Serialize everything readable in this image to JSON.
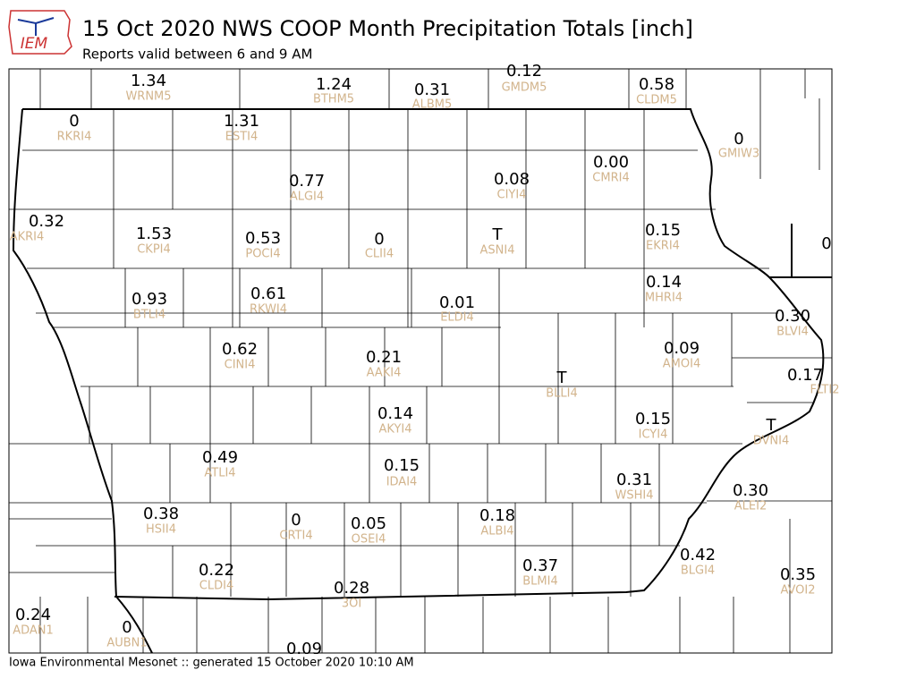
{
  "header": {
    "logo": "IEM",
    "title": "15 Oct 2020 NWS COOP Month Precipitation Totals [inch]",
    "subtitle": "Reports valid between 6 and 9 AM"
  },
  "stations": [
    {
      "value": "1.34",
      "id": "WRNM5"
    },
    {
      "value": "1.24",
      "id": "BTHM5"
    },
    {
      "value": "0.31",
      "id": "ALBM5"
    },
    {
      "value": "0.12",
      "id": "GMDM5"
    },
    {
      "value": "0.58",
      "id": "CLDM5"
    },
    {
      "value": "0",
      "id": "RKRI4"
    },
    {
      "value": "1.31",
      "id": "ESTI4"
    },
    {
      "value": "0",
      "id": "GMIW3"
    },
    {
      "value": "0.00",
      "id": "CMRI4"
    },
    {
      "value": "0.08",
      "id": "CIYI4"
    },
    {
      "value": "0.77",
      "id": "ALGI4"
    },
    {
      "value": "0.32",
      "id": "AKRI4"
    },
    {
      "value": "1.53",
      "id": "CKPI4"
    },
    {
      "value": "0.53",
      "id": "POCI4"
    },
    {
      "value": "0",
      "id": "CLII4"
    },
    {
      "value": "T",
      "id": "ASNI4"
    },
    {
      "value": "0.15",
      "id": "EKRI4"
    },
    {
      "value": "0"
    },
    {
      "value": "0.14",
      "id": "MHRI4"
    },
    {
      "value": "0.93",
      "id": "BTLI4"
    },
    {
      "value": "0.61",
      "id": "RKWI4"
    },
    {
      "value": "0.01",
      "id": "ELDI4"
    },
    {
      "value": "0.30",
      "id": "BLVI4"
    },
    {
      "value": "0.62",
      "id": "CINI4"
    },
    {
      "value": "0.21",
      "id": "AAKI4"
    },
    {
      "value": "0.09",
      "id": "AMOI4"
    },
    {
      "value": "0.17",
      "id": "FLTI2"
    },
    {
      "value": "T",
      "id": "BLLI4"
    },
    {
      "value": "0.14",
      "id": "AKYI4"
    },
    {
      "value": "0.15",
      "id": "ICYI4"
    },
    {
      "value": "T",
      "id": "DVNI4"
    },
    {
      "value": "0.49",
      "id": "ATLI4"
    },
    {
      "value": "0.15",
      "id": "IDAI4"
    },
    {
      "value": "0.31",
      "id": "WSHI4"
    },
    {
      "value": "0.30",
      "id": "ALEI2"
    },
    {
      "value": "0.38",
      "id": "HSII4"
    },
    {
      "value": "0",
      "id": "CRTI4"
    },
    {
      "value": "0.05",
      "id": "OSEI4"
    },
    {
      "value": "0.18",
      "id": "ALBI4"
    },
    {
      "value": "0.42",
      "id": "BLGI4"
    },
    {
      "value": "0.22",
      "id": "CLDI4"
    },
    {
      "value": "0.37",
      "id": "BLMI4"
    },
    {
      "value": "0.35",
      "id": "AVOI2"
    },
    {
      "value": "0.28",
      "id": "3OI"
    },
    {
      "value": "0.24",
      "id": "ADAN1"
    },
    {
      "value": "0",
      "id": "AUBN1"
    },
    {
      "value": "0.09"
    }
  ],
  "footer": "Iowa Environmental Mesonet :: generated 15 October 2020 10:10 AM"
}
